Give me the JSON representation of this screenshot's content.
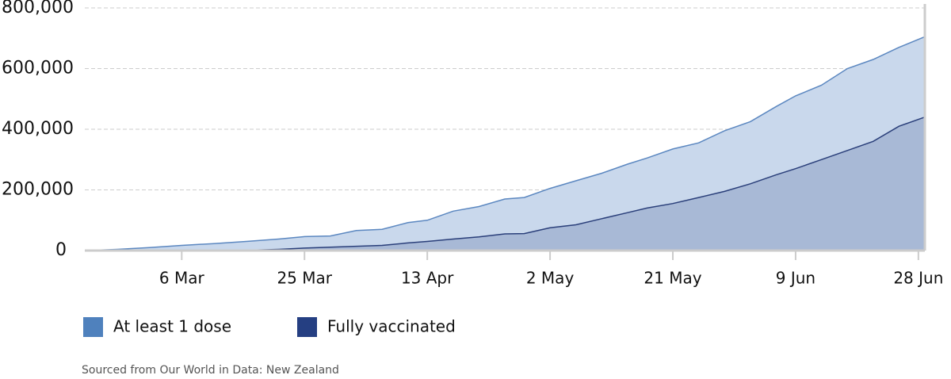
{
  "chart_data": {
    "type": "area",
    "x": [
      0,
      5,
      10,
      15,
      20,
      25,
      30,
      34,
      38,
      42,
      46,
      50,
      53,
      57,
      61,
      65,
      68,
      72,
      76,
      80,
      84,
      87,
      91,
      95,
      99,
      103,
      107,
      110,
      114,
      118,
      122,
      126,
      130
    ],
    "xlim": [
      0,
      130
    ],
    "xticks": [
      {
        "value": 15,
        "label": "6 Mar"
      },
      {
        "value": 34,
        "label": "25 Mar"
      },
      {
        "value": 53,
        "label": "13 Apr"
      },
      {
        "value": 72,
        "label": "2 May"
      },
      {
        "value": 91,
        "label": "21 May"
      },
      {
        "value": 110,
        "label": "9 Jun"
      },
      {
        "value": 129,
        "label": "28 Jun"
      }
    ],
    "ylim": [
      0,
      800000
    ],
    "yticks": [
      0,
      {
        "value": 200000,
        "label": "200,000"
      },
      {
        "value": 400000,
        "label": "400,000"
      },
      {
        "value": 600000,
        "label": "600,000"
      },
      {
        "value": 800000,
        "label": "800,000"
      }
    ],
    "grid": true,
    "series": [
      {
        "name": "At least 1 dose",
        "color": "#4f81bd",
        "values": [
          0,
          4000,
          10000,
          17000,
          23000,
          30000,
          38000,
          46000,
          48000,
          66000,
          70000,
          92000,
          100000,
          130000,
          145000,
          170000,
          175000,
          205000,
          230000,
          255000,
          285000,
          305000,
          335000,
          355000,
          395000,
          425000,
          475000,
          510000,
          545000,
          600000,
          630000,
          670000,
          705000
        ]
      },
      {
        "name": "Fully vaccinated",
        "color": "#253f82",
        "values": [
          0,
          0,
          0,
          0,
          0,
          1000,
          4000,
          8000,
          11000,
          14000,
          17000,
          25000,
          30000,
          38000,
          45000,
          55000,
          56000,
          75000,
          85000,
          105000,
          125000,
          140000,
          155000,
          175000,
          195000,
          220000,
          250000,
          270000,
          300000,
          330000,
          360000,
          410000,
          440000
        ]
      }
    ],
    "source": "Sourced from Our World in Data: New Zealand"
  }
}
